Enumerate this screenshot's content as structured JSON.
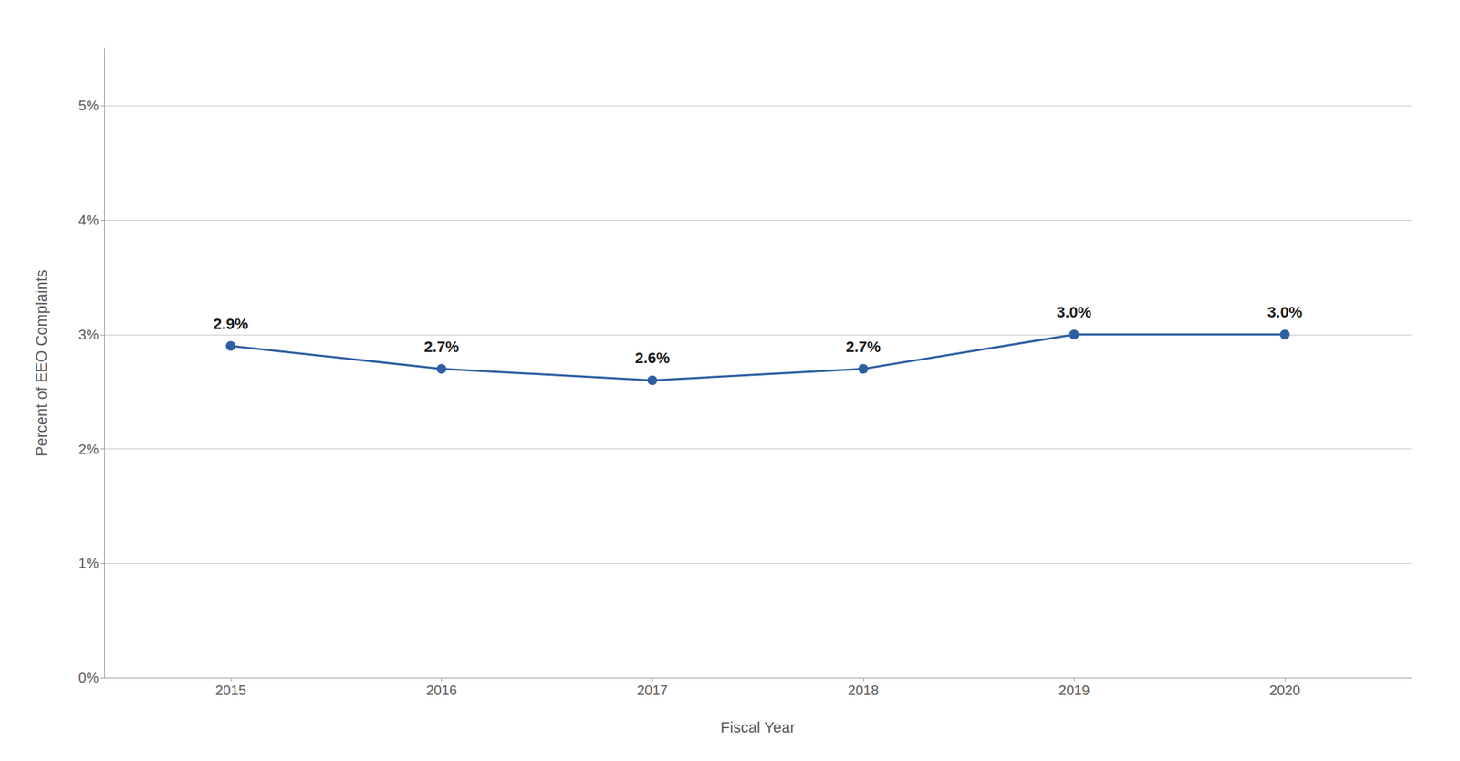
{
  "chart_data": {
    "type": "line",
    "x": [
      2015,
      2016,
      2017,
      2018,
      2019,
      2020
    ],
    "values": [
      0.029,
      0.027,
      0.026,
      0.027,
      0.03,
      0.03
    ],
    "value_labels": [
      "2.9%",
      "2.7%",
      "2.6%",
      "2.7%",
      "3.0%",
      "3.0%"
    ],
    "data_labels": true,
    "color": "#2E5FA3",
    "marker": "circle",
    "xlabel": "Fiscal Year",
    "ylabel": "Percent of EEO Complaints",
    "xlim": [
      2014.4,
      2020.6
    ],
    "xticks": [
      2015,
      2016,
      2017,
      2018,
      2019,
      2020
    ],
    "ylim": [
      0,
      0.055
    ],
    "yticks": [
      {
        "value": 0,
        "label": "0%"
      },
      {
        "value": 0.01,
        "label": "1%"
      },
      {
        "value": 0.02,
        "label": "2%"
      },
      {
        "value": 0.03,
        "label": "3%"
      },
      {
        "value": 0.04,
        "label": "4%"
      },
      {
        "value": 0.05,
        "label": "5%"
      }
    ],
    "grid": "y"
  }
}
